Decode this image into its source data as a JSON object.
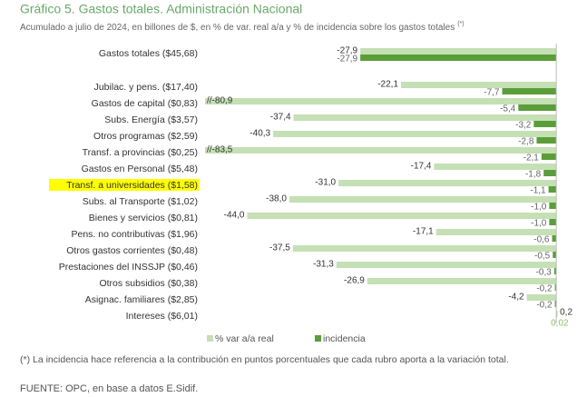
{
  "chart_data": {
    "type": "bar",
    "orientation": "horizontal",
    "title": "Gráfico 5. Gastos totales. Administración Nacional",
    "subtitle": "Acumulado a julio de 2024, en billones de $, en % de var. real a/a y % de incidencia sobre los gastos totales",
    "subtitle_note": "(*)",
    "categories": [
      "Gastos totales ($45,68)",
      "Jubilac. y pens. ($17,40)",
      "Gastos de capital ($0,83)",
      "Subs. Energía ($3,57)",
      "Otros programas ($2,59)",
      "Transf. a provincias ($0,25)",
      "Gastos en Personal ($5,48)",
      "Transf. a universidades ($1,58)",
      "Subs. al Transporte ($1,02)",
      "Bienes y servicios ($0,81)",
      "Pens. no contributivas ($1,96)",
      "Otros gastos corrientes ($0,48)",
      "Prestaciones del INSSJP ($0,46)",
      "Otros subsidios ($0,38)",
      "Asignac. familiares ($2,85)",
      "Intereses ($6,01)"
    ],
    "series": [
      {
        "name": "% var a/a real",
        "color": "#c5e0b4",
        "values": [
          -27.9,
          -22.1,
          -80.9,
          -37.4,
          -40.3,
          -83.5,
          -17.4,
          -31.0,
          -38.0,
          -44.0,
          -17.1,
          -37.5,
          -31.3,
          -26.9,
          -4.2,
          0.2
        ],
        "value_labels": [
          "-27,9",
          "-22,1",
          "//-80,9",
          "-37,4",
          "-40,3",
          "//-83,5",
          "-17,4",
          "-31,0",
          "-38,0",
          "-44,0",
          "-17,1",
          "-37,5",
          "-31,3",
          "-26,9",
          "-4,2",
          "0,2"
        ]
      },
      {
        "name": "incidencia",
        "color": "#5a9e3a",
        "values": [
          -27.9,
          -7.7,
          -5.4,
          -3.2,
          -2.8,
          -2.1,
          -1.8,
          -1.1,
          -1.0,
          -1.0,
          -0.6,
          -0.5,
          -0.3,
          -0.2,
          -0.2,
          0.02
        ],
        "value_labels": [
          "-27,9",
          "-7,7",
          "-5,4",
          "-3,2",
          "-2,8",
          "-2,1",
          "-1,8",
          "-1,1",
          "-1,0",
          "-1,0",
          "-0,6",
          "-0,5",
          "-0,3",
          "-0,2",
          "-0,2",
          "0,02"
        ]
      }
    ],
    "xlim": [
      -50,
      0.5
    ],
    "highlight_index": 7,
    "highlight_color": "#ffff00",
    "footnote": "(*) La incidencia hace referencia a la contribución en puntos porcentuales que cada rubro aporta a la variación total.",
    "source": "FUENTE: OPC, en base a datos E.Sidif."
  }
}
